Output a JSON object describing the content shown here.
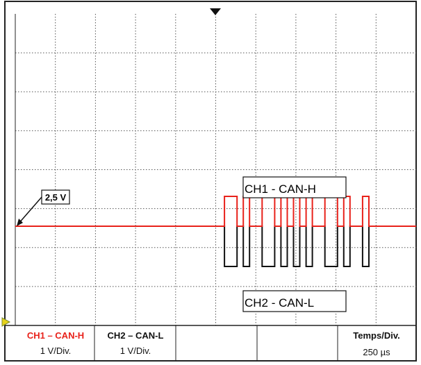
{
  "annotations": {
    "reference_level": "2,5 V",
    "ch1_trace_label": "CH1 - CAN-H",
    "ch2_trace_label": "CH2 - CAN-L"
  },
  "status_bar": {
    "ch1_name": "CH1 – CAN-H",
    "ch1_scale": "1 V/Div.",
    "ch2_name": "CH2 – CAN-L",
    "ch2_scale": "1 V/Div.",
    "timebase_label": "Temps/Div.",
    "timebase_value": "250 µs"
  },
  "colors": {
    "ch1": "#e8211a",
    "ch2": "#111111",
    "grid": "#555555",
    "marker": "#e6d21a"
  },
  "signal": {
    "bits_pattern": "00110100110101010011010010"
  }
}
